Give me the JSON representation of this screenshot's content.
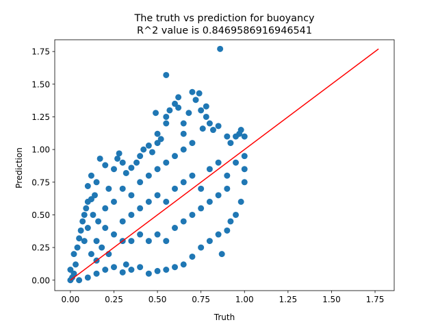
{
  "chart_data": {
    "type": "scatter",
    "title": "The truth vs prediction for buoyancy",
    "subtitle": "R^2 value is 0.8469586916946541",
    "xlabel": "Truth",
    "ylabel": "Prediction",
    "xlim": [
      -0.09,
      1.86
    ],
    "ylim": [
      -0.08,
      1.84
    ],
    "xticks": [
      "0.00",
      "0.25",
      "0.50",
      "0.75",
      "1.00",
      "1.25",
      "1.50",
      "1.75"
    ],
    "yticks": [
      "0.00",
      "0.25",
      "0.50",
      "0.75",
      "1.00",
      "1.25",
      "1.50",
      "1.75"
    ],
    "grid": false,
    "series": [
      {
        "kind": "scatter",
        "color": "#1f77b4",
        "points": [
          [
            0.0,
            0.0
          ],
          [
            0.01,
            0.02
          ],
          [
            0.02,
            0.05
          ],
          [
            0.0,
            0.08
          ],
          [
            0.03,
            0.12
          ],
          [
            0.02,
            0.2
          ],
          [
            0.04,
            0.25
          ],
          [
            0.05,
            0.32
          ],
          [
            0.06,
            0.38
          ],
          [
            0.07,
            0.45
          ],
          [
            0.08,
            0.5
          ],
          [
            0.09,
            0.55
          ],
          [
            0.1,
            0.6
          ],
          [
            0.12,
            0.62
          ],
          [
            0.14,
            0.65
          ],
          [
            0.1,
            0.72
          ],
          [
            0.12,
            0.8
          ],
          [
            0.15,
            0.75
          ],
          [
            0.17,
            0.93
          ],
          [
            0.2,
            0.88
          ],
          [
            0.22,
            0.7
          ],
          [
            0.25,
            0.85
          ],
          [
            0.27,
            0.93
          ],
          [
            0.28,
            0.97
          ],
          [
            0.3,
            0.9
          ],
          [
            0.32,
            0.82
          ],
          [
            0.35,
            0.86
          ],
          [
            0.38,
            0.9
          ],
          [
            0.4,
            0.95
          ],
          [
            0.42,
            1.0
          ],
          [
            0.45,
            1.03
          ],
          [
            0.47,
            0.98
          ],
          [
            0.5,
            1.05
          ],
          [
            0.5,
            1.12
          ],
          [
            0.52,
            1.08
          ],
          [
            0.55,
            1.2
          ],
          [
            0.55,
            1.25
          ],
          [
            0.57,
            1.3
          ],
          [
            0.6,
            1.35
          ],
          [
            0.62,
            1.4
          ],
          [
            0.62,
            1.32
          ],
          [
            0.65,
            1.2
          ],
          [
            0.65,
            1.12
          ],
          [
            0.68,
            1.28
          ],
          [
            0.7,
            1.44
          ],
          [
            0.72,
            1.38
          ],
          [
            0.74,
            1.43
          ],
          [
            0.75,
            1.3
          ],
          [
            0.76,
            1.16
          ],
          [
            0.78,
            1.25
          ],
          [
            0.8,
            1.2
          ],
          [
            0.82,
            1.15
          ],
          [
            0.85,
            1.18
          ],
          [
            0.86,
            1.77
          ],
          [
            0.55,
            1.57
          ],
          [
            0.49,
            1.28
          ],
          [
            0.78,
            1.33
          ],
          [
            0.9,
            1.1
          ],
          [
            0.92,
            1.05
          ],
          [
            0.95,
            1.1
          ],
          [
            0.97,
            1.12
          ],
          [
            0.98,
            1.15
          ],
          [
            1.0,
            1.1
          ],
          [
            1.0,
            0.95
          ],
          [
            1.0,
            0.85
          ],
          [
            1.0,
            0.75
          ],
          [
            0.98,
            0.6
          ],
          [
            0.95,
            0.5
          ],
          [
            0.92,
            0.45
          ],
          [
            0.9,
            0.38
          ],
          [
            0.87,
            0.2
          ],
          [
            0.85,
            0.35
          ],
          [
            0.8,
            0.3
          ],
          [
            0.75,
            0.25
          ],
          [
            0.7,
            0.18
          ],
          [
            0.65,
            0.12
          ],
          [
            0.6,
            0.1
          ],
          [
            0.55,
            0.08
          ],
          [
            0.5,
            0.07
          ],
          [
            0.45,
            0.05
          ],
          [
            0.4,
            0.1
          ],
          [
            0.35,
            0.08
          ],
          [
            0.32,
            0.12
          ],
          [
            0.3,
            0.06
          ],
          [
            0.25,
            0.1
          ],
          [
            0.2,
            0.08
          ],
          [
            0.15,
            0.05
          ],
          [
            0.1,
            0.02
          ],
          [
            0.05,
            0.0
          ],
          [
            0.15,
            0.3
          ],
          [
            0.2,
            0.4
          ],
          [
            0.25,
            0.35
          ],
          [
            0.3,
            0.45
          ],
          [
            0.35,
            0.5
          ],
          [
            0.4,
            0.55
          ],
          [
            0.45,
            0.6
          ],
          [
            0.5,
            0.65
          ],
          [
            0.55,
            0.6
          ],
          [
            0.6,
            0.7
          ],
          [
            0.65,
            0.75
          ],
          [
            0.7,
            0.8
          ],
          [
            0.75,
            0.7
          ],
          [
            0.8,
            0.85
          ],
          [
            0.85,
            0.9
          ],
          [
            0.9,
            0.8
          ],
          [
            0.95,
            0.9
          ],
          [
            0.3,
            0.7
          ],
          [
            0.35,
            0.65
          ],
          [
            0.4,
            0.75
          ],
          [
            0.45,
            0.8
          ],
          [
            0.5,
            0.85
          ],
          [
            0.55,
            0.9
          ],
          [
            0.6,
            0.95
          ],
          [
            0.65,
            1.0
          ],
          [
            0.7,
            1.05
          ],
          [
            0.2,
            0.55
          ],
          [
            0.25,
            0.6
          ],
          [
            0.3,
            0.3
          ],
          [
            0.35,
            0.3
          ],
          [
            0.4,
            0.35
          ],
          [
            0.45,
            0.3
          ],
          [
            0.5,
            0.35
          ],
          [
            0.55,
            0.3
          ],
          [
            0.6,
            0.4
          ],
          [
            0.65,
            0.45
          ],
          [
            0.7,
            0.5
          ],
          [
            0.75,
            0.55
          ],
          [
            0.8,
            0.6
          ],
          [
            0.85,
            0.65
          ],
          [
            0.9,
            0.7
          ],
          [
            0.12,
            0.2
          ],
          [
            0.15,
            0.15
          ],
          [
            0.18,
            0.25
          ],
          [
            0.22,
            0.2
          ],
          [
            0.08,
            0.3
          ],
          [
            0.1,
            0.4
          ],
          [
            0.13,
            0.5
          ],
          [
            0.16,
            0.45
          ]
        ]
      },
      {
        "kind": "line",
        "color": "#ff0000",
        "points": [
          [
            0.0,
            0.0
          ],
          [
            1.77,
            1.77
          ]
        ]
      }
    ]
  }
}
